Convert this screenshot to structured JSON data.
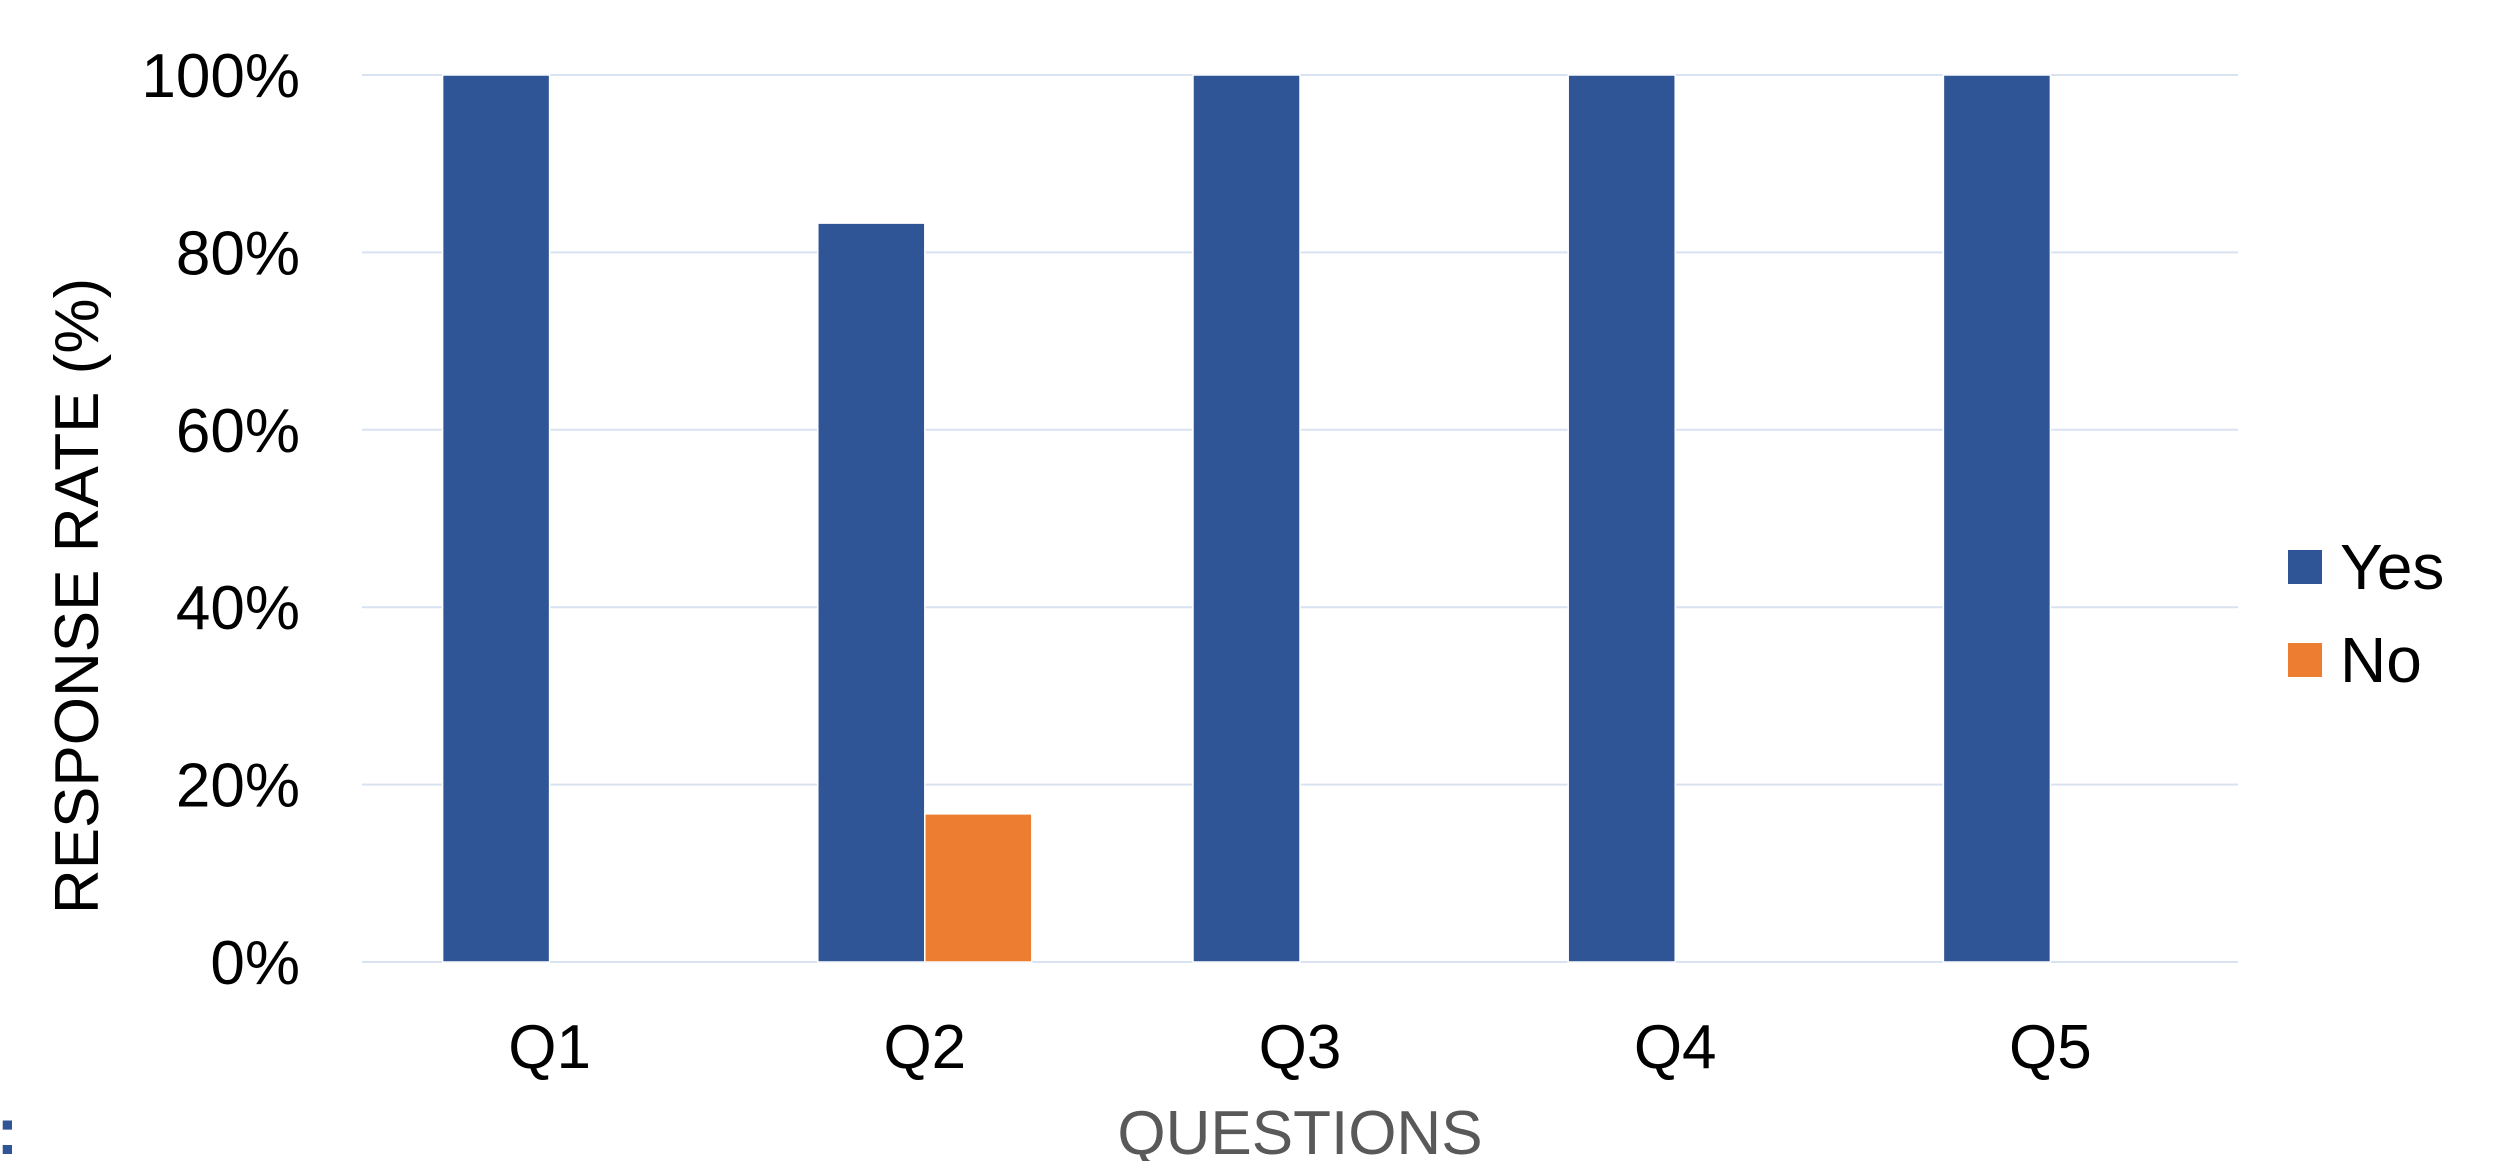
{
  "chart_data": {
    "type": "bar",
    "categories": [
      "Q1",
      "Q2",
      "Q3",
      "Q4",
      "Q5"
    ],
    "series": [
      {
        "name": "Yes",
        "values": [
          100,
          83.3,
          100,
          100,
          100
        ],
        "color": "#2F5597"
      },
      {
        "name": "No",
        "values": [
          0,
          16.7,
          0,
          0,
          0
        ],
        "color": "#ED7D31"
      }
    ],
    "yticks": [
      "0%",
      "20%",
      "40%",
      "60%",
      "80%",
      "100%"
    ],
    "ylim": [
      0,
      100
    ],
    "xlabel": "QUESTIONS",
    "ylabel": "RESPONSE RATE (%)",
    "grid": true,
    "legend_position": "right",
    "gridline_color": "#D9E2F1"
  },
  "fragment_text": "l:"
}
